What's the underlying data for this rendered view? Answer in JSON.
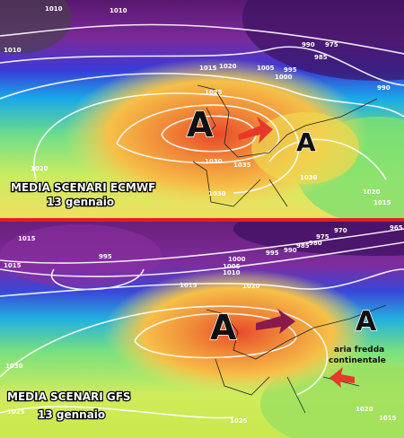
{
  "panels": [
    {
      "title": "MEDIA SCENARI ECMWF",
      "date": "13 gennaio",
      "highs": [
        "A",
        "A"
      ],
      "isobars": [
        1010,
        1010,
        1010,
        1015,
        1020,
        1025,
        1030,
        1035,
        990,
        975,
        985,
        995,
        1000,
        1005,
        990,
        1020,
        1020,
        1015,
        1030,
        1030
      ]
    },
    {
      "title": "MEDIA SCENARI GFS",
      "date": "13 gennaio",
      "highs": [
        "A",
        "A"
      ],
      "isobars": [
        1015,
        995,
        1000,
        1005,
        1010,
        1015,
        1020,
        970,
        975,
        980,
        985,
        990,
        995,
        965,
        1015,
        1030,
        1025,
        1020,
        1015,
        1025
      ],
      "annotation": [
        "aria fredda",
        "continentale"
      ]
    }
  ]
}
